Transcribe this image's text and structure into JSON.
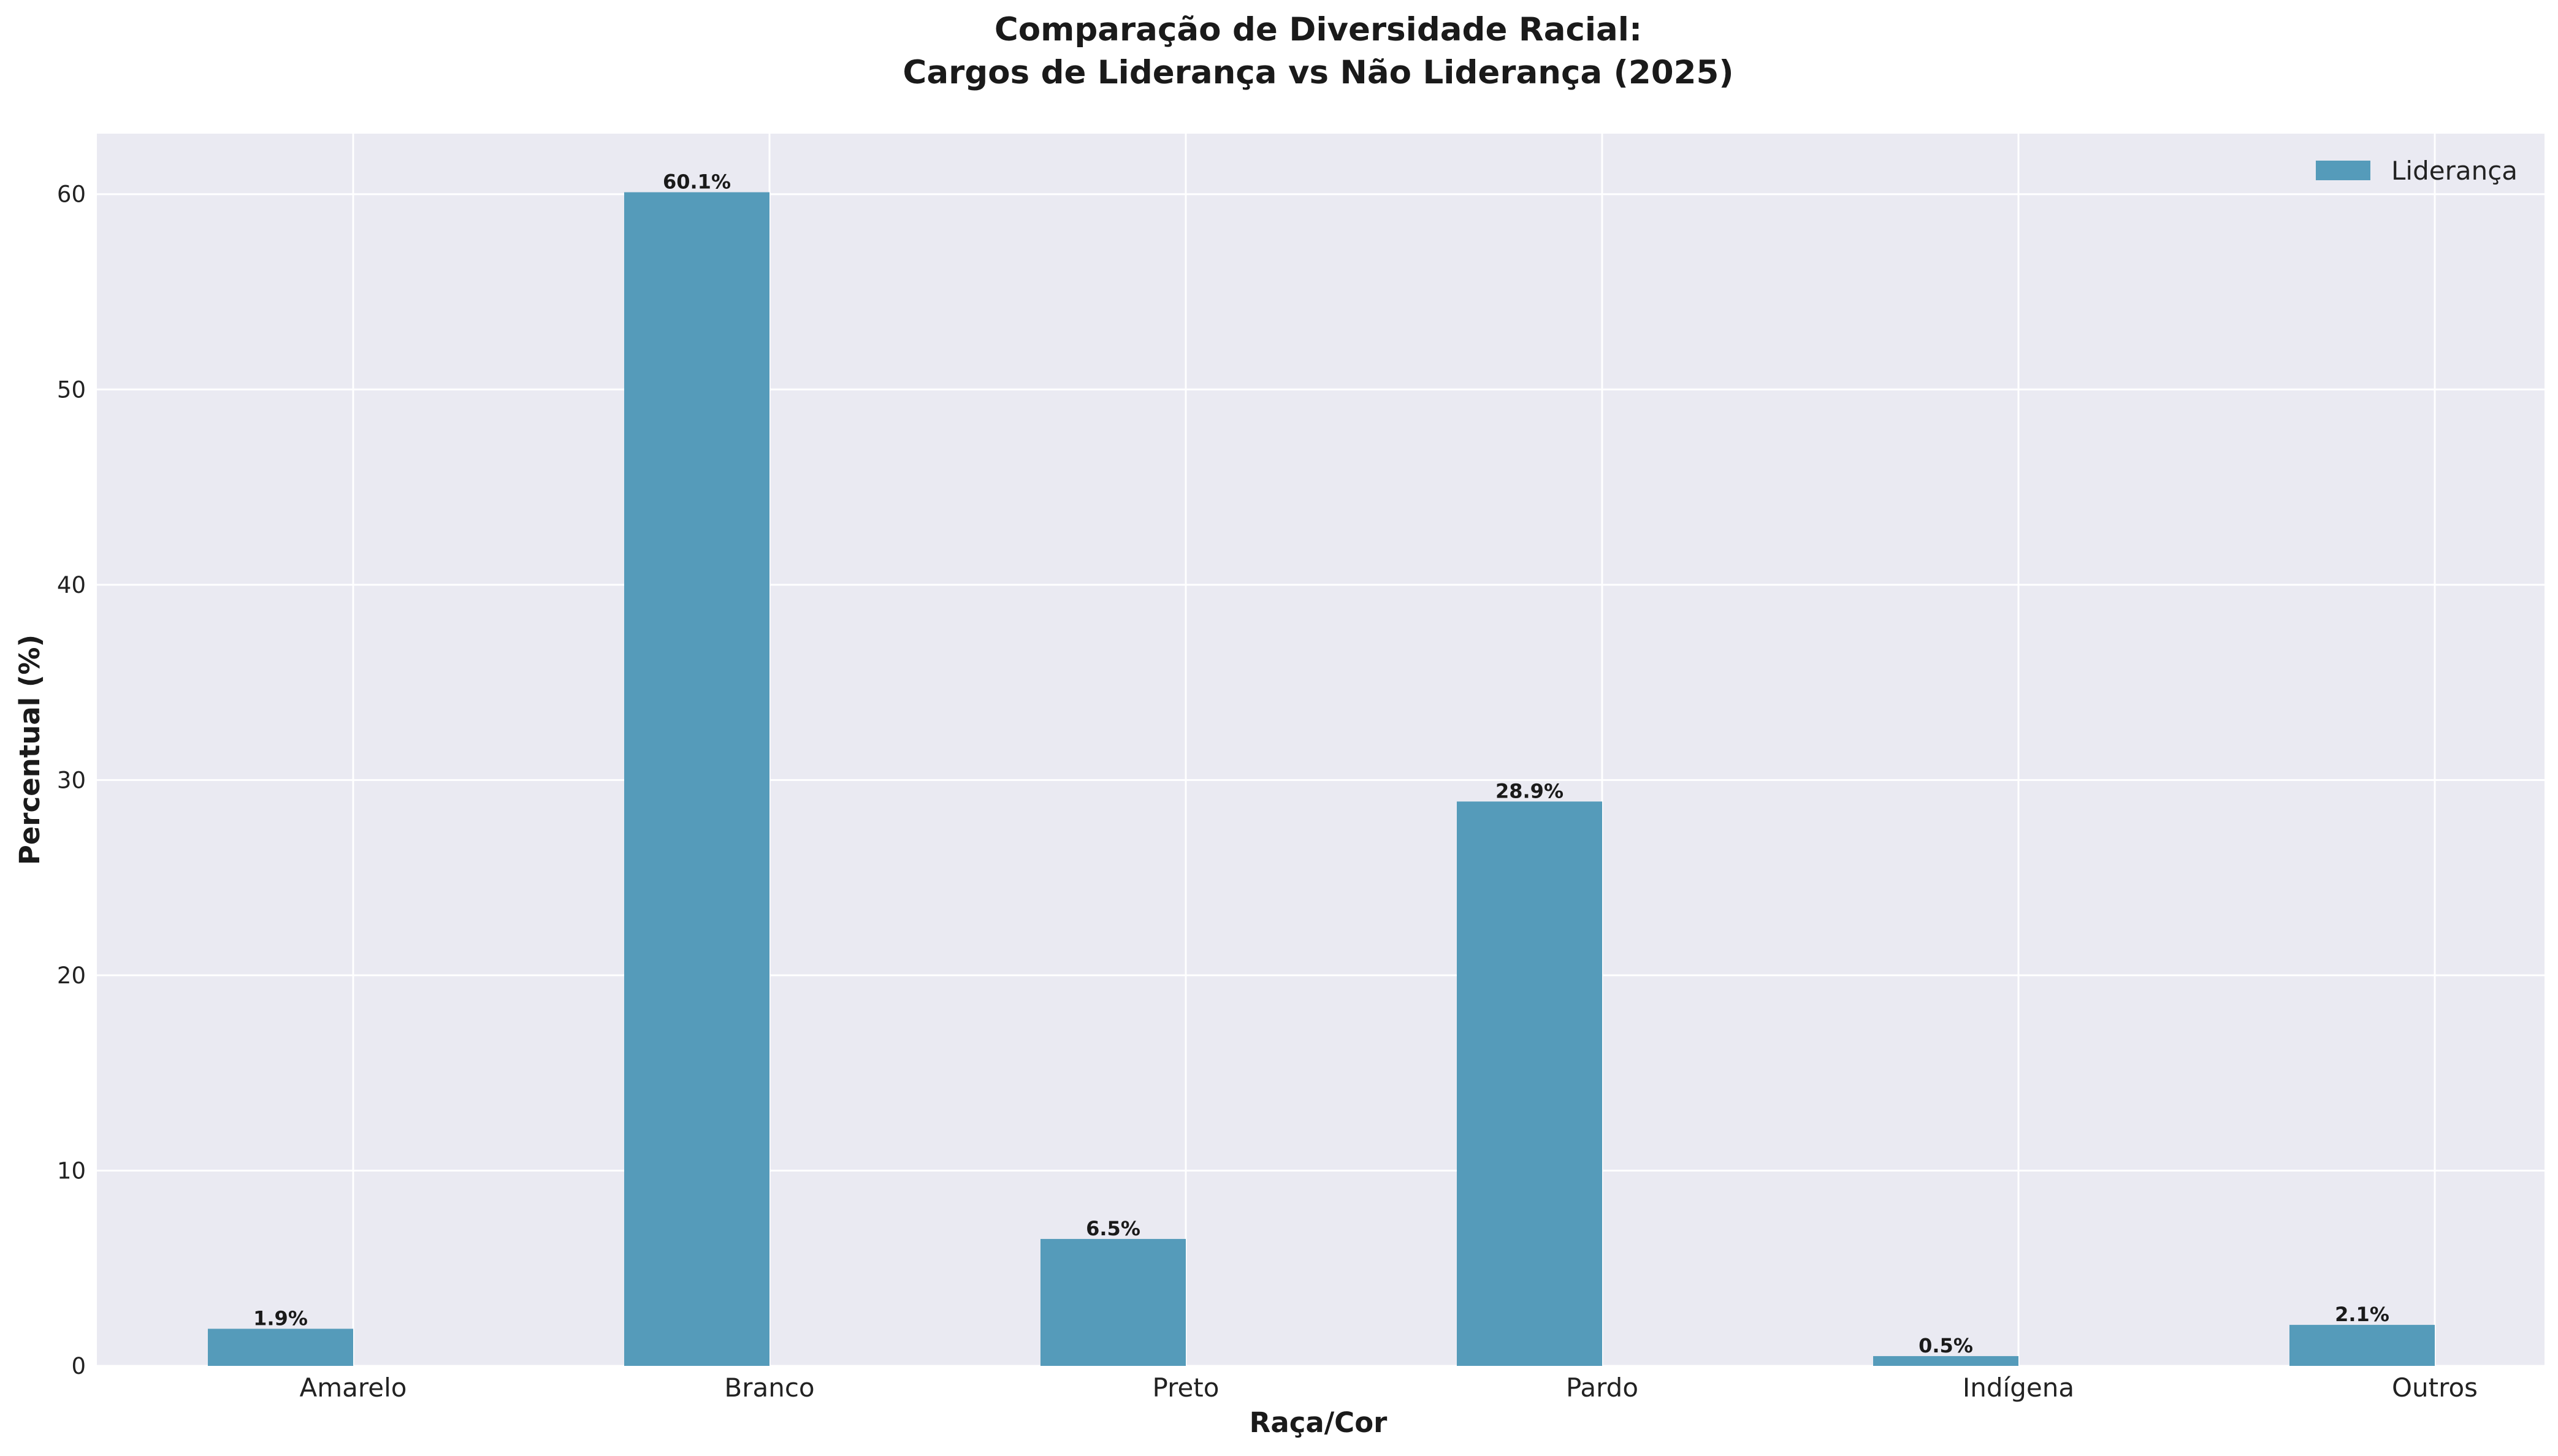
{
  "colors": {
    "background": "#ffffff",
    "plot_background": "#eaeaf2",
    "grid": "#ffffff",
    "bar": "#559bba",
    "text": "#1a1a1a"
  },
  "chart_data": {
    "type": "bar",
    "title": "Comparação de Diversidade Racial:",
    "subtitle": "Cargos de Liderança vs Não Liderança (2025)",
    "xlabel": "Raça/Cor",
    "ylabel": "Percentual (%)",
    "categories": [
      "Amarelo",
      "Branco",
      "Preto",
      "Pardo",
      "Indígena",
      "Outros"
    ],
    "series": [
      {
        "name": "Liderança",
        "values": [
          1.9,
          60.1,
          6.5,
          28.9,
          0.5,
          2.1
        ],
        "labels": [
          "1.9%",
          "60.1%",
          "6.5%",
          "28.9%",
          "0.5%",
          "2.1%"
        ]
      }
    ],
    "ylim": [
      0,
      63.1
    ],
    "yticks": [
      0,
      10,
      20,
      30,
      40,
      50,
      60
    ],
    "grid": true,
    "legend": "top-right"
  }
}
